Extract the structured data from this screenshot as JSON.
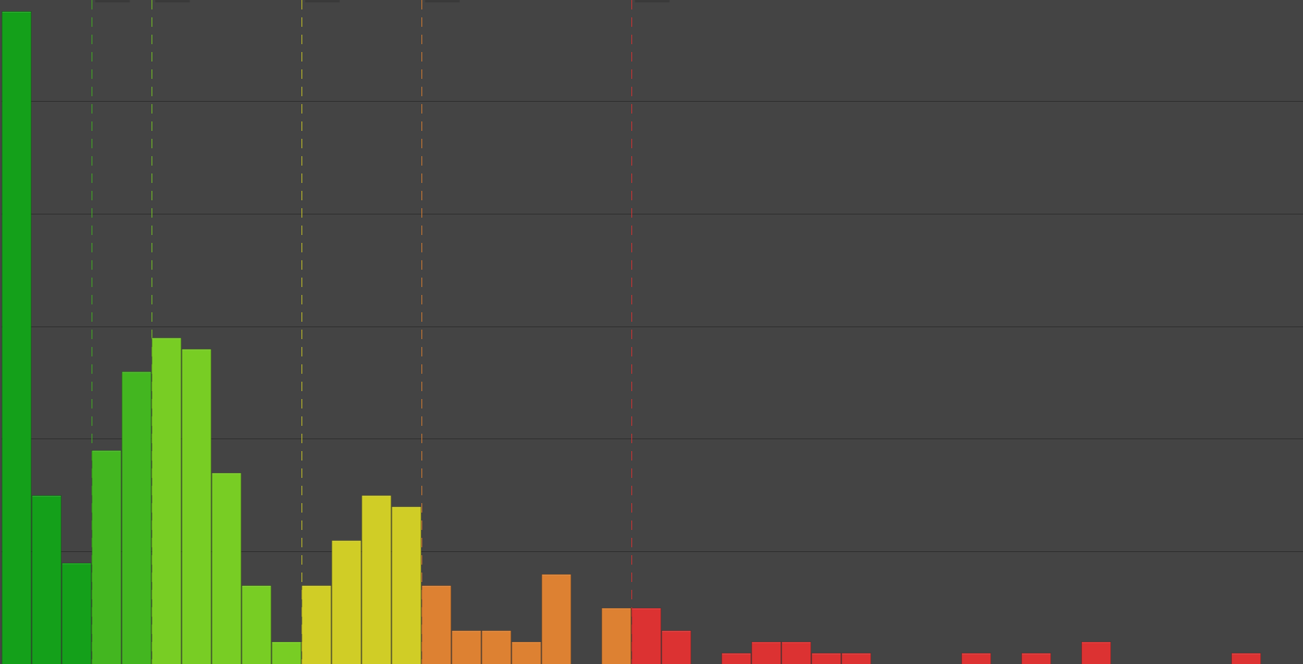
{
  "chart_data": {
    "type": "bar",
    "title": "",
    "xlabel": "",
    "ylabel": "",
    "grid": true,
    "legend": "none",
    "ylim": [
      0,
      58
    ],
    "yticks": [
      10,
      20,
      30,
      40,
      50
    ],
    "bin_start": 0,
    "bin_width": 1,
    "values": [
      58,
      15,
      9,
      19,
      26,
      29,
      28,
      17,
      7,
      2,
      7,
      11,
      15,
      14,
      7,
      3,
      3,
      2,
      8,
      0,
      5,
      5,
      3,
      0,
      1,
      2,
      2,
      1,
      1,
      0,
      0,
      0,
      1,
      0,
      1,
      0,
      2,
      0,
      0,
      0,
      0,
      1
    ],
    "bar_colors": [
      "#14a01a",
      "#14a01a",
      "#14a01a",
      "#43b620",
      "#43b620",
      "#78cd24",
      "#78cd24",
      "#78cd24",
      "#78cd24",
      "#78cd24",
      "#d0cd26",
      "#d0cd26",
      "#d0cd26",
      "#d0cd26",
      "#dd8132",
      "#dd8132",
      "#dd8132",
      "#dd8132",
      "#dd8132",
      "#dd8132",
      "#dd8132",
      "#dc3232",
      "#dc3232",
      "#dc3232",
      "#dc3232",
      "#dc3232",
      "#dc3232",
      "#dc3232",
      "#dc3232",
      "#dc3232",
      "#dc3232",
      "#dc3232",
      "#dc3232",
      "#dc3232",
      "#dc3232",
      "#dc3232",
      "#dc3232",
      "#dc3232",
      "#dc3232",
      "#dc3232",
      "#dc3232",
      "#dc3232"
    ],
    "thresholds": [
      {
        "x": 3,
        "color": "#43b620"
      },
      {
        "x": 5,
        "color": "#78cd24"
      },
      {
        "x": 10,
        "color": "#d0cd26"
      },
      {
        "x": 14,
        "color": "#dd8132"
      },
      {
        "x": 21,
        "color": "#dc3232"
      }
    ],
    "colors": {
      "background": "#444444",
      "gridline": "#2f2f2f",
      "label_tab": "#3a3a3a"
    }
  }
}
